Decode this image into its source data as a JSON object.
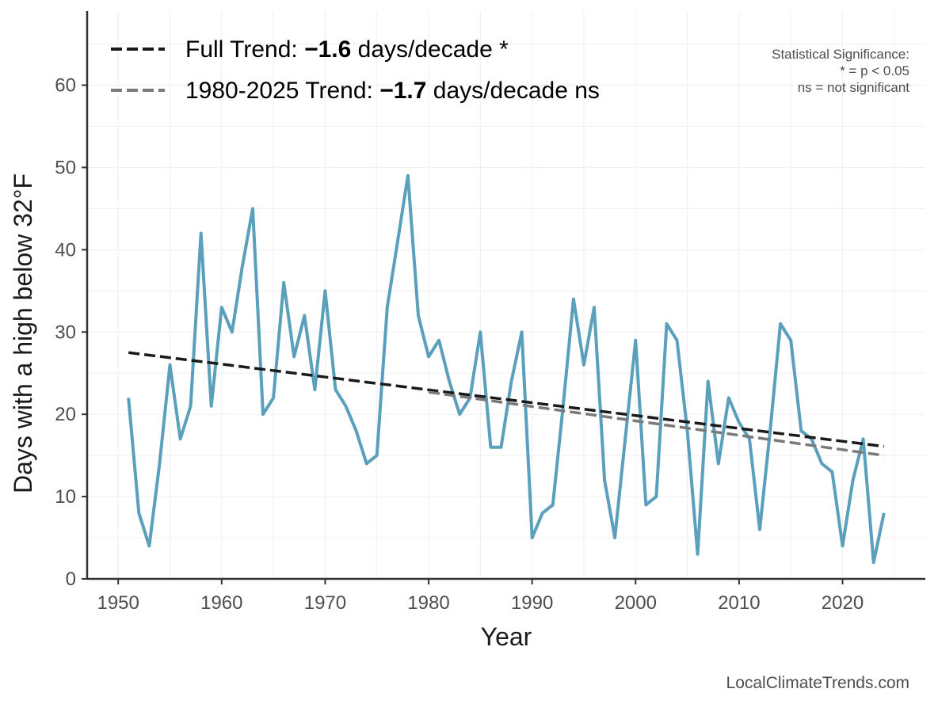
{
  "chart_data": {
    "type": "line",
    "xlabel": "Year",
    "ylabel": "Days with a high below 32°F",
    "xlim": [
      1947,
      2028
    ],
    "ylim": [
      0,
      69
    ],
    "x_ticks": [
      1950,
      1960,
      1970,
      1980,
      1990,
      2000,
      2010,
      2020
    ],
    "y_ticks": [
      0,
      10,
      20,
      30,
      40,
      50,
      60
    ],
    "grid": true,
    "legend_position": "top-left",
    "colors": {
      "series": "#5a9fbc",
      "full_trend": "#1a1a1a",
      "recent_trend": "#7a7a7a"
    },
    "series": [
      {
        "x": [
          1951,
          1952,
          1953,
          1954,
          1955,
          1956,
          1957,
          1958,
          1959,
          1960,
          1961,
          1962,
          1963,
          1964,
          1965,
          1966,
          1967,
          1968,
          1969,
          1970,
          1971,
          1972,
          1973,
          1974,
          1975,
          1976,
          1977,
          1978,
          1979,
          1980,
          1981,
          1982,
          1983,
          1984,
          1985,
          1986,
          1987,
          1988,
          1989,
          1990,
          1991,
          1992,
          1993,
          1994,
          1995,
          1996,
          1997,
          1998,
          1999,
          2000,
          2001,
          2002,
          2003,
          2004,
          2005,
          2006,
          2007,
          2008,
          2009,
          2010,
          2011,
          2012,
          2013,
          2014,
          2015,
          2016,
          2017,
          2018,
          2019,
          2020,
          2021,
          2022,
          2023,
          2024
        ],
        "values": [
          22,
          8,
          4,
          14,
          26,
          17,
          21,
          42,
          21,
          33,
          30,
          38,
          45,
          20,
          22,
          36,
          27,
          32,
          23,
          35,
          23,
          21,
          18,
          14,
          15,
          33,
          41,
          49,
          32,
          27,
          29,
          24,
          20,
          22,
          30,
          16,
          16,
          24,
          30,
          5,
          8,
          9,
          21,
          34,
          26,
          33,
          12,
          5,
          17,
          29,
          9,
          10,
          31,
          29,
          18,
          3,
          24,
          14,
          22,
          19,
          17,
          6,
          18,
          31,
          29,
          18,
          17,
          14,
          13,
          4,
          12,
          17,
          2,
          8
        ]
      }
    ],
    "trends": [
      {
        "label_prefix": "Full Trend: ",
        "value": "−1.6",
        "label_suffix": " days/decade *",
        "x": [
          1951,
          2024
        ],
        "y": [
          27.5,
          16.1
        ]
      },
      {
        "label_prefix": "1980-2025 Trend: ",
        "value": "−1.7",
        "label_suffix": " days/decade ns",
        "x": [
          1980,
          2024
        ],
        "y": [
          22.7,
          15.0
        ]
      }
    ],
    "significance_note": [
      "Statistical Significance:",
      "* = p < 0.05",
      "ns = not significant"
    ],
    "source": "LocalClimateTrends.com"
  }
}
